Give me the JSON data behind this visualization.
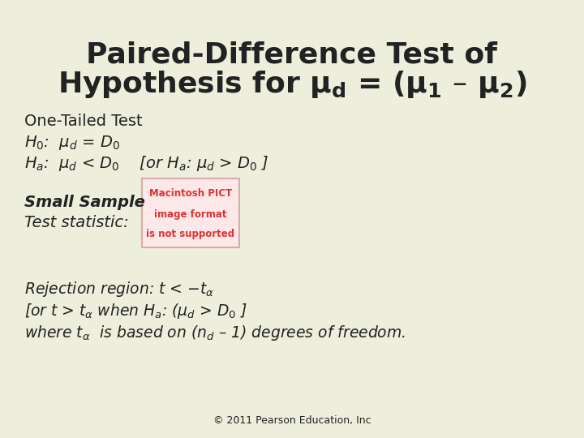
{
  "background_color": "#eeeedd",
  "title_line1": "Paired-Difference Test of",
  "title_line2": "Hypothesis for $\\mathbf{\\mu_d}$ = ($\\mathbf{\\mu_1}$ – $\\mathbf{\\mu_2}$)",
  "subtitle": "One-Tailed Test",
  "h0": "$H_0$:  $\\mu_d$ = $D_0$",
  "ha": "$H_a$:  $\\mu_d$ <$D_0$    [or $H_a$: $\\mu_d$ >$D_0$ ]",
  "small_sample": "Small Sample",
  "test_statistic": "Test statistic:",
  "pict_text_line1": "Macintosh PICT",
  "pict_text_line2": "image format",
  "pict_text_line3": "is not supported",
  "rejection": "Rejection region: $t$ < $-t_{\\alpha}$",
  "or_line": "[or $t$ > $t_{\\alpha}$ when $H_a$: ($\\mu_d$ > $D_0$ ]",
  "where_line": "where $t_{\\alpha}$  is based on ($n_d$ – 1) degrees of freedom.",
  "copyright": "© 2011 Pearson Education, Inc",
  "text_color": "#222222",
  "pict_bg": "#fce8e8",
  "pict_border": "#ddaaaa",
  "pict_text_color": "#dd3333",
  "title_fontsize": 26,
  "body_fontsize": 14,
  "italic_fontsize": 13.5
}
